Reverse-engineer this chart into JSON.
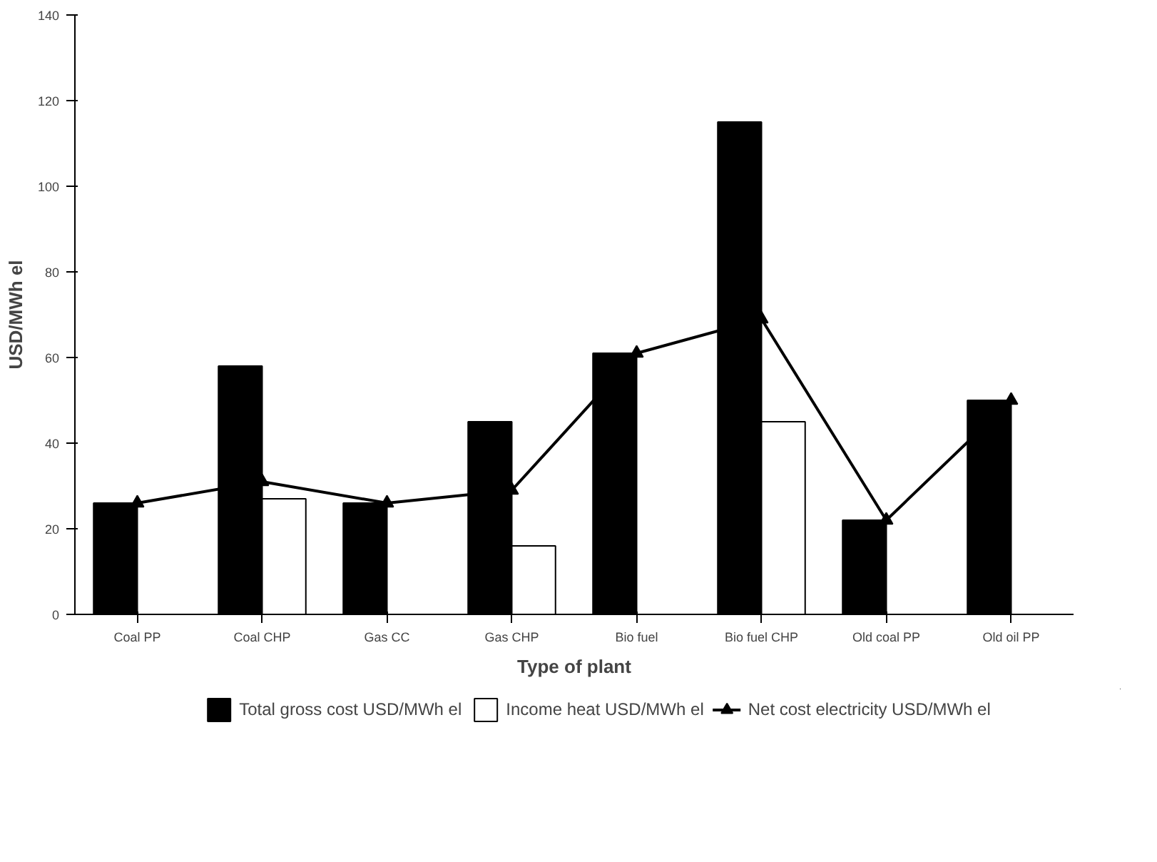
{
  "chart_data": {
    "type": "bar",
    "xlabel": "Type of plant",
    "ylabel": "USD/MWh el",
    "categories": [
      "Coal PP",
      "Coal CHP",
      "Gas CC",
      "Gas CHP",
      "Bio fuel",
      "Bio fuel CHP",
      "Old coal PP",
      "Old oil PP"
    ],
    "series": [
      {
        "name": "Total gross cost USD/MWh el",
        "color": "#000000",
        "values": [
          26,
          58,
          26,
          45,
          61,
          115,
          22,
          50
        ]
      },
      {
        "name": "Income heat USD/MWh el",
        "color": "#ffffff",
        "values": [
          null,
          27,
          null,
          16,
          null,
          45,
          null,
          null
        ]
      },
      {
        "name": "Net cost electricity USD/MWh el",
        "type": "line",
        "color": "#000000",
        "marker": "triangle",
        "values": [
          26,
          31,
          26,
          29,
          61,
          69,
          22,
          50
        ]
      }
    ],
    "ylim": [
      0,
      140
    ],
    "yticks": [
      0,
      20,
      40,
      60,
      80,
      100,
      120,
      140
    ],
    "grid": false,
    "legend": "bottom"
  }
}
